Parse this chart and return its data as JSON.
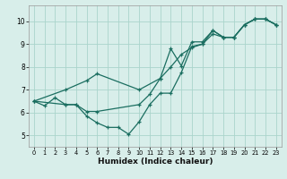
{
  "xlabel": "Humidex (Indice chaleur)",
  "bg_color": "#d8eeea",
  "grid_color": "#aad4cc",
  "line_color": "#1a6e60",
  "xlim": [
    -0.5,
    23.5
  ],
  "ylim": [
    4.5,
    10.7
  ],
  "xticks": [
    0,
    1,
    2,
    3,
    4,
    5,
    6,
    7,
    8,
    9,
    10,
    11,
    12,
    13,
    14,
    15,
    16,
    17,
    18,
    19,
    20,
    21,
    22,
    23
  ],
  "yticks": [
    5,
    6,
    7,
    8,
    9,
    10
  ],
  "line1_x": [
    0,
    1,
    2,
    3,
    4,
    5,
    6,
    10,
    11,
    12,
    13,
    14,
    15,
    16,
    17,
    18,
    19,
    20,
    21,
    22,
    23
  ],
  "line1_y": [
    6.5,
    6.3,
    6.65,
    6.35,
    6.35,
    6.05,
    6.05,
    6.35,
    6.8,
    7.5,
    8.8,
    8.05,
    9.1,
    9.1,
    9.6,
    9.3,
    9.3,
    9.85,
    10.1,
    10.1,
    9.85
  ],
  "line2_x": [
    0,
    3,
    4,
    5,
    6,
    7,
    8,
    9,
    10,
    11,
    12,
    13,
    14,
    15,
    16,
    17,
    18,
    19,
    20,
    21,
    22,
    23
  ],
  "line2_y": [
    6.5,
    6.35,
    6.35,
    5.85,
    5.55,
    5.35,
    5.35,
    5.05,
    5.6,
    6.35,
    6.85,
    6.85,
    7.75,
    8.9,
    9.0,
    9.45,
    9.3,
    9.3,
    9.85,
    10.1,
    10.1,
    9.85
  ],
  "line3_x": [
    0,
    3,
    5,
    6,
    10,
    12,
    13,
    14,
    15,
    16,
    17,
    18,
    19,
    20,
    21,
    22,
    23
  ],
  "line3_y": [
    6.5,
    7.0,
    7.4,
    7.7,
    7.0,
    7.5,
    8.0,
    8.55,
    8.85,
    9.0,
    9.6,
    9.3,
    9.3,
    9.85,
    10.1,
    10.1,
    9.85
  ],
  "tick_fontsize": 5.5,
  "xlabel_fontsize": 6.5
}
